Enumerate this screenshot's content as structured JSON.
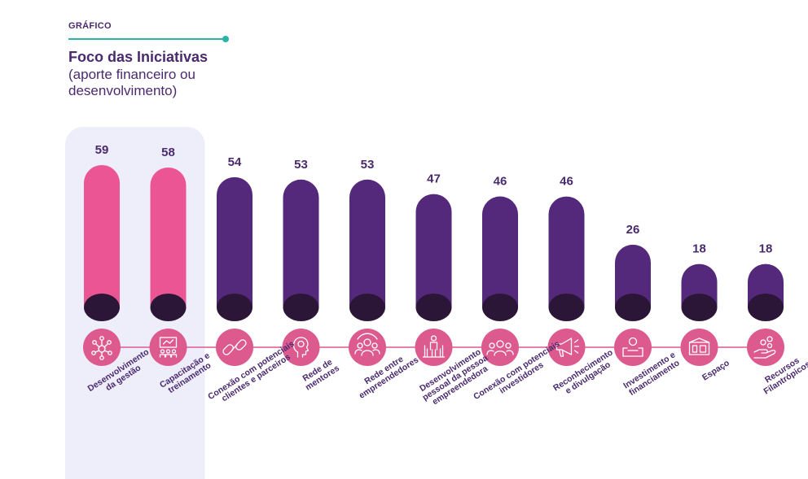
{
  "header": {
    "tag": "GRÁFICO",
    "title": "Foco das Iniciativas",
    "subtitle": "(aporte financeiro ou desenvolvimento)"
  },
  "chart_data": {
    "type": "bar",
    "title": "Foco das Iniciativas",
    "subtitle": "(aporte financeiro ou desenvolvimento)",
    "categories": [
      [
        "Desenvolvimento",
        "da gestão"
      ],
      [
        "Capacitação e",
        "treinamento"
      ],
      [
        "Conexão com potenciais",
        "clientes e parceiros"
      ],
      [
        "Rede de",
        "mentores"
      ],
      [
        "Rede entre",
        "empreendedores"
      ],
      [
        "Desenvolvimento",
        "pessoal da pessoa",
        "empreendedora"
      ],
      [
        "Conexão com potenciais",
        "investidores"
      ],
      [
        "Reconhecimento",
        "e divulgação"
      ],
      [
        "Investimento e",
        "financiamento"
      ],
      [
        "Espaço"
      ],
      [
        "Recursos",
        "Filantrópicos"
      ]
    ],
    "values": [
      59,
      58,
      54,
      53,
      53,
      47,
      46,
      46,
      26,
      18,
      18
    ],
    "icons": [
      "network-icon",
      "presentation-icon",
      "link-icon",
      "mentor-icon",
      "group-icon",
      "person-icon",
      "investors-icon",
      "megaphone-icon",
      "money-box-icon",
      "building-icon",
      "hand-coins-icon"
    ],
    "highlighted": [
      0,
      1
    ],
    "ylim": [
      0,
      59
    ],
    "grid": false,
    "legend": "none",
    "colors": {
      "highlight": "#ec5593",
      "bar": "#54287b",
      "cap": "#2c1638",
      "icon_circle": "#dc5a8e",
      "axis_line": "#dc5a8e",
      "value_text": "#4a2a6e",
      "highlight_panel": "#eeeefb"
    }
  }
}
